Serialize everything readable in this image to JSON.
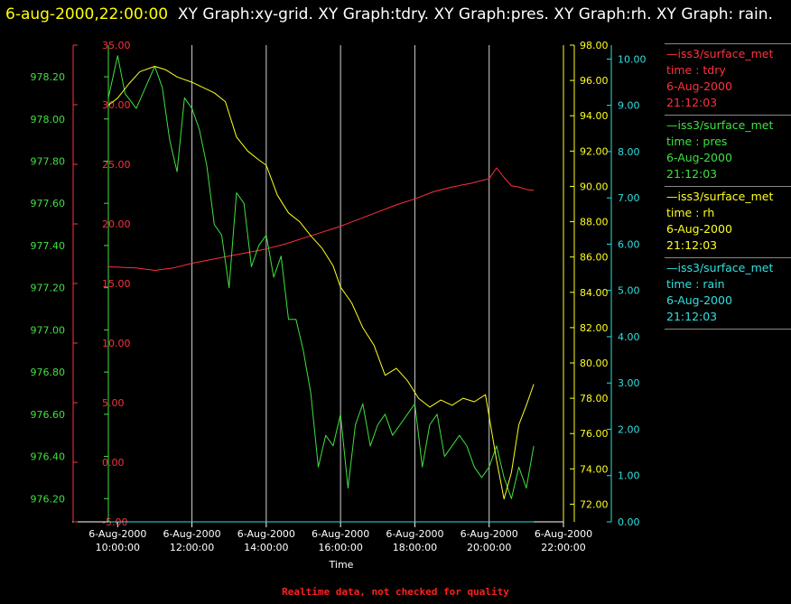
{
  "header": {
    "timestamp": "6-aug-2000,22:00:00",
    "title_text": "XY Graph:xy-grid.  XY Graph:tdry.  XY Graph:pres.  XY Graph:rh.  XY Graph: rain."
  },
  "footer": {
    "note": "Realtime data, not checked for quality"
  },
  "legend": [
    {
      "source": "—iss3/surface_met",
      "var": "time : tdry",
      "date": "6-Aug-2000",
      "time": "21:12:03",
      "color": "#ff3040"
    },
    {
      "source": "—iss3/surface_met",
      "var": "time : pres",
      "date": "6-Aug-2000",
      "time": "21:12:03",
      "color": "#40e040"
    },
    {
      "source": "—iss3/surface_met",
      "var": "time : rh",
      "date": "6-Aug-2000",
      "time": "21:12:03",
      "color": "#ffff20"
    },
    {
      "source": "—iss3/surface_met",
      "var": "time : rain",
      "date": "6-Aug-2000",
      "time": "21:12:03",
      "color": "#30e0e0"
    }
  ],
  "chart_data": {
    "type": "line",
    "xlabel": "Time",
    "xlim": [
      9.75,
      22.0
    ],
    "x_ticks": [
      {
        "t": 10,
        "d": "6-Aug-2000",
        "h": "10:00:00"
      },
      {
        "t": 12,
        "d": "6-Aug-2000",
        "h": "12:00:00"
      },
      {
        "t": 14,
        "d": "6-Aug-2000",
        "h": "14:00:00"
      },
      {
        "t": 16,
        "d": "6-Aug-2000",
        "h": "16:00:00"
      },
      {
        "t": 18,
        "d": "6-Aug-2000",
        "h": "18:00:00"
      },
      {
        "t": 20,
        "d": "6-Aug-2000",
        "h": "20:00:00"
      },
      {
        "t": 22,
        "d": "6-Aug-2000",
        "h": "22:00:00"
      }
    ],
    "grid_x": [
      12,
      14,
      16,
      18,
      20,
      22
    ],
    "axes": {
      "tdry": {
        "color": "#ff3040",
        "min": -5,
        "max": 35,
        "step": 5,
        "decimals": 2,
        "ticks": [
          "-5.00",
          "0.00",
          "5.00",
          "10.00",
          "15.00",
          "20.00",
          "25.00",
          "30.00",
          "35.00"
        ]
      },
      "pres": {
        "color": "#40e040",
        "min": 976.09,
        "max": 978.35,
        "step": 0.2,
        "decimals": 2,
        "ticks": [
          "976.20",
          "976.40",
          "976.60",
          "976.80",
          "977.00",
          "977.20",
          "977.40",
          "977.60",
          "977.80",
          "978.00",
          "978.20"
        ]
      },
      "rh": {
        "color": "#ffff20",
        "min": 71.0,
        "max": 98.0,
        "step": 2,
        "decimals": 2,
        "ticks": [
          "72.00",
          "74.00",
          "76.00",
          "78.00",
          "80.00",
          "82.00",
          "84.00",
          "86.00",
          "88.00",
          "90.00",
          "92.00",
          "94.00",
          "96.00",
          "98.00"
        ]
      },
      "rain": {
        "color": "#30e0e0",
        "min": 0.0,
        "max": 10.3,
        "step": 1,
        "decimals": 2,
        "ticks": [
          "0.00",
          "1.00",
          "2.00",
          "3.00",
          "4.00",
          "5.00",
          "6.00",
          "7.00",
          "8.00",
          "9.00",
          "10.00"
        ]
      }
    },
    "series": [
      {
        "name": "tdry",
        "axis": "tdry",
        "color": "#ff3040",
        "x": [
          9.75,
          10.5,
          11.0,
          11.5,
          12.0,
          12.5,
          13.0,
          13.5,
          14.0,
          14.5,
          15.0,
          15.5,
          16.0,
          16.5,
          17.0,
          17.5,
          18.0,
          18.5,
          19.0,
          19.5,
          20.0,
          20.2,
          20.4,
          20.6,
          20.8,
          21.0,
          21.2
        ],
        "y": [
          16.4,
          16.3,
          16.1,
          16.3,
          16.7,
          17.0,
          17.3,
          17.6,
          17.9,
          18.3,
          18.8,
          19.3,
          19.8,
          20.4,
          21.0,
          21.6,
          22.1,
          22.7,
          23.1,
          23.4,
          23.8,
          24.7,
          23.9,
          23.2,
          23.1,
          22.9,
          22.8
        ]
      },
      {
        "name": "pres",
        "axis": "pres",
        "color": "#40e040",
        "x": [
          9.75,
          10.0,
          10.2,
          10.5,
          11.0,
          11.2,
          11.4,
          11.6,
          11.8,
          12.0,
          12.2,
          12.4,
          12.6,
          12.8,
          13.0,
          13.2,
          13.4,
          13.6,
          13.8,
          14.0,
          14.2,
          14.4,
          14.6,
          14.8,
          15.0,
          15.2,
          15.4,
          15.6,
          15.8,
          16.0,
          16.2,
          16.4,
          16.6,
          16.8,
          17.0,
          17.2,
          17.4,
          17.6,
          17.8,
          18.0,
          18.2,
          18.4,
          18.6,
          18.8,
          19.0,
          19.2,
          19.4,
          19.6,
          19.8,
          20.0,
          20.2,
          20.4,
          20.6,
          20.8,
          21.0,
          21.2
        ],
        "y": [
          978.1,
          978.3,
          978.12,
          978.05,
          978.25,
          978.15,
          977.9,
          977.75,
          978.1,
          978.05,
          977.95,
          977.78,
          977.5,
          977.45,
          977.2,
          977.65,
          977.6,
          977.3,
          977.4,
          977.45,
          977.25,
          977.35,
          977.05,
          977.05,
          976.9,
          976.7,
          976.35,
          976.5,
          976.45,
          976.6,
          976.25,
          976.55,
          976.65,
          976.45,
          976.55,
          976.6,
          976.5,
          976.55,
          976.6,
          976.65,
          976.35,
          976.55,
          976.6,
          976.4,
          976.45,
          976.5,
          976.45,
          976.35,
          976.3,
          976.35,
          976.45,
          976.3,
          976.2,
          976.35,
          976.25,
          976.45
        ]
      },
      {
        "name": "rh",
        "axis": "rh",
        "color": "#ffff20",
        "x": [
          9.75,
          10.0,
          10.3,
          10.6,
          11.0,
          11.3,
          11.6,
          12.0,
          12.3,
          12.6,
          12.9,
          13.2,
          13.5,
          13.8,
          14.0,
          14.3,
          14.6,
          14.9,
          15.2,
          15.5,
          15.8,
          16.0,
          16.3,
          16.6,
          16.9,
          17.2,
          17.5,
          17.8,
          18.1,
          18.4,
          18.7,
          19.0,
          19.3,
          19.6,
          19.9,
          20.2,
          20.4,
          20.6,
          20.8,
          21.0,
          21.2
        ],
        "y": [
          94.6,
          95.0,
          95.8,
          96.5,
          96.8,
          96.6,
          96.2,
          95.9,
          95.6,
          95.3,
          94.8,
          92.8,
          92.0,
          91.5,
          91.2,
          89.5,
          88.5,
          88.0,
          87.2,
          86.5,
          85.5,
          84.3,
          83.4,
          82.0,
          81.0,
          79.3,
          79.7,
          79.0,
          78.0,
          77.5,
          77.9,
          77.6,
          78.0,
          77.8,
          78.2,
          74.5,
          72.3,
          73.8,
          76.5,
          77.6,
          78.8
        ]
      },
      {
        "name": "rain",
        "axis": "rain",
        "color": "#30e0e0",
        "x": [
          9.75,
          21.2
        ],
        "y": [
          0.0,
          0.0
        ]
      }
    ]
  }
}
